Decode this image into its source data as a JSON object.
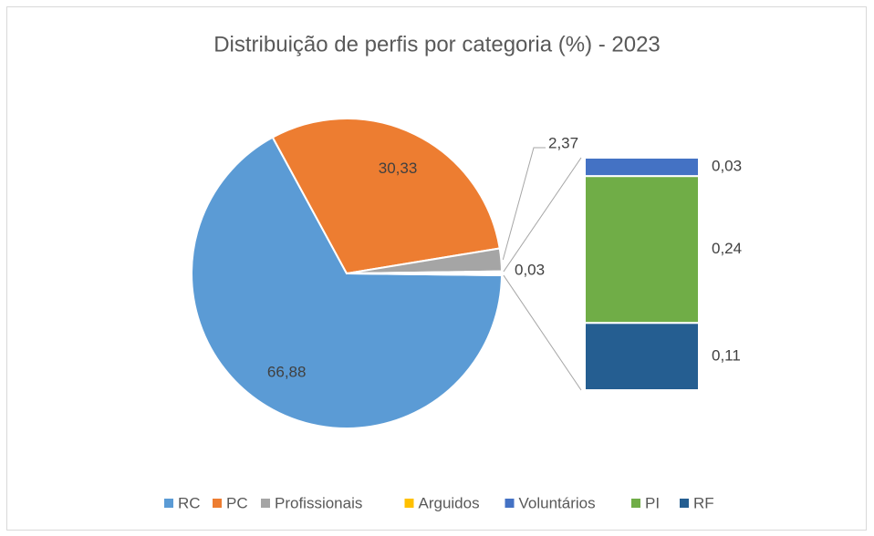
{
  "chart_data": {
    "type": "pie",
    "title": "Distribuição de perfis por categoria (%) - 2023",
    "categories": [
      "RC",
      "PC",
      "Profissionais",
      "Arguidos",
      "Voluntários",
      "PI",
      "RF"
    ],
    "values": [
      66.88,
      30.33,
      2.37,
      0.03,
      0.03,
      0.24,
      0.11
    ],
    "value_labels": [
      "66,88",
      "30,33",
      "2,37",
      "0,03",
      "0,03",
      "0,24",
      "0,11"
    ],
    "colors": [
      "#5b9bd5",
      "#ed7d31",
      "#a5a5a5",
      "#ffc000",
      "#4472c4",
      "#70ad47",
      "#255e91"
    ],
    "bar_of_pie": 3,
    "legend": "bottom"
  }
}
